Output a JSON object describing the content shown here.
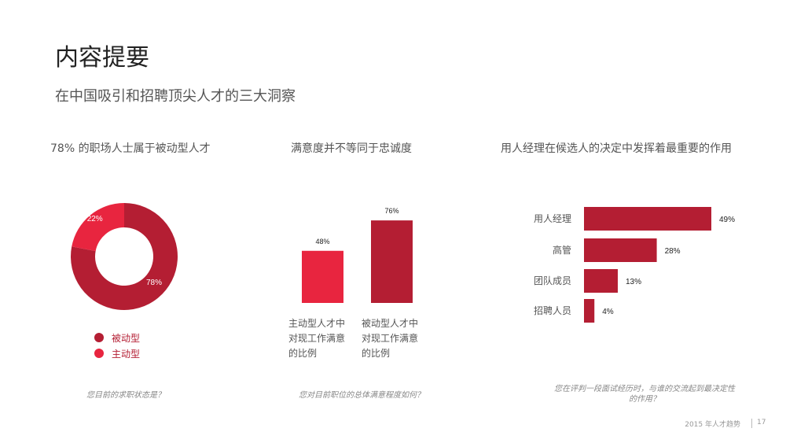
{
  "page": {
    "title": "内容提要",
    "subtitle": "在中国吸引和招聘顶尖人才的三大洞察",
    "footer": "2015 年人才趋势",
    "page_number": "17"
  },
  "panels": [
    {
      "title": "78% 的职场人士属于被动型人才",
      "question": "您目前的求职状态是？"
    },
    {
      "title": "满意度并不等同于忠诚度",
      "question": "您对目前职位的总体满意程度如何？"
    },
    {
      "title": "用人经理在候选人的决定中发挥着最重要的作用",
      "question": "您在评判一段面试经历时，与谁的交流起到最决定性的作用？"
    }
  ],
  "chart_data": [
    {
      "type": "pie",
      "labels": [
        "被动型",
        "主动型"
      ],
      "values": [
        78,
        22
      ],
      "value_labels": [
        "78%",
        "22%"
      ],
      "colors": [
        "#b41e33",
        "#e8253f"
      ],
      "legend": "bottom-left"
    },
    {
      "type": "bar",
      "categories": [
        "主动型人才中对现工作满意的比例",
        "被动型人才中对现工作满意的比例"
      ],
      "values": [
        48,
        76
      ],
      "value_labels": [
        "48%",
        "76%"
      ],
      "colors": [
        "#e8253f",
        "#b41e33"
      ],
      "ylim": [
        0,
        100
      ]
    },
    {
      "type": "bar",
      "orientation": "horizontal",
      "categories": [
        "用人经理",
        "高管",
        "团队成员",
        "招聘人员"
      ],
      "values": [
        49,
        28,
        13,
        4
      ],
      "value_labels": [
        "49%",
        "28%",
        "13%",
        "4%"
      ],
      "color": "#b41e33",
      "xlim": [
        0,
        50
      ]
    }
  ]
}
